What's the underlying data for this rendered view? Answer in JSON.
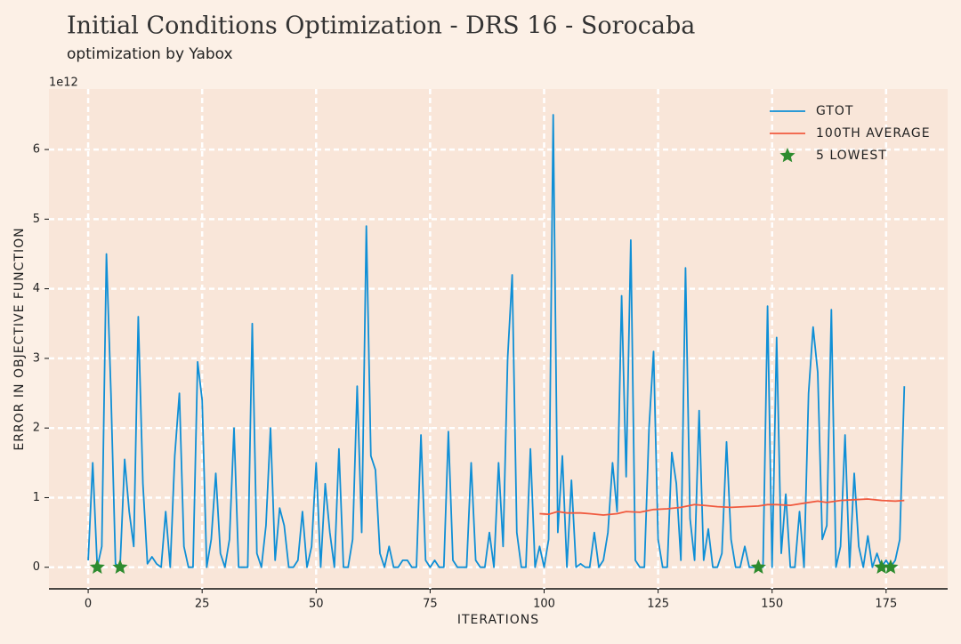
{
  "chart_data": {
    "type": "line",
    "title": "Initial Conditions Optimization - DRS 16 - Sorocaba",
    "subtitle": "optimization by Yabox",
    "x_label": "ITERATIONS",
    "y_label": "ERROR IN OBJECTIVE FUNCTION",
    "y_offset_label": "1e12",
    "xlim": [
      -8.6,
      188.5
    ],
    "ylim": [
      -0.31,
      6.87
    ],
    "xticks": [
      0,
      25,
      50,
      75,
      100,
      125,
      150,
      175
    ],
    "yticks": [
      0,
      1,
      2,
      3,
      4,
      5,
      6
    ],
    "grid": true,
    "legend": "upper right",
    "series": [
      {
        "name": "GTOT",
        "color": "#0f8fd6",
        "style": "line",
        "x": [
          0,
          1,
          2,
          3,
          4,
          5,
          6,
          7,
          8,
          9,
          10,
          11,
          12,
          13,
          14,
          15,
          16,
          17,
          18,
          19,
          20,
          21,
          22,
          23,
          24,
          25,
          26,
          27,
          28,
          29,
          30,
          31,
          32,
          33,
          34,
          35,
          36,
          37,
          38,
          39,
          40,
          41,
          42,
          43,
          44,
          45,
          46,
          47,
          48,
          49,
          50,
          51,
          52,
          53,
          54,
          55,
          56,
          57,
          58,
          59,
          60,
          61,
          62,
          63,
          64,
          65,
          66,
          67,
          68,
          69,
          70,
          71,
          72,
          73,
          74,
          75,
          76,
          77,
          78,
          79,
          80,
          81,
          82,
          83,
          84,
          85,
          86,
          87,
          88,
          89,
          90,
          91,
          92,
          93,
          94,
          95,
          96,
          97,
          98,
          99,
          100,
          101,
          102,
          103,
          104,
          105,
          106,
          107,
          108,
          109,
          110,
          111,
          112,
          113,
          114,
          115,
          116,
          117,
          118,
          119,
          120,
          121,
          122,
          123,
          124,
          125,
          126,
          127,
          128,
          129,
          130,
          131,
          132,
          133,
          134,
          135,
          136,
          137,
          138,
          139,
          140,
          141,
          142,
          143,
          144,
          145,
          146,
          147,
          148,
          149,
          150,
          151,
          152,
          153,
          154,
          155,
          156,
          157,
          158,
          159,
          160,
          161,
          162,
          163,
          164,
          165,
          166,
          167,
          168,
          169,
          170,
          171,
          172,
          173,
          174,
          175,
          176,
          177,
          178,
          179
        ],
        "values": [
          0.1,
          1.5,
          0.0,
          0.3,
          4.5,
          2.5,
          0.05,
          0.0,
          1.55,
          0.8,
          0.3,
          3.6,
          1.2,
          0.05,
          0.15,
          0.05,
          0.0,
          0.8,
          0.0,
          1.6,
          2.5,
          0.3,
          0.0,
          0.0,
          2.95,
          2.4,
          0.0,
          0.4,
          1.35,
          0.2,
          0.0,
          0.4,
          2.0,
          0.0,
          0.0,
          0.0,
          3.5,
          0.2,
          0.0,
          0.6,
          2.0,
          0.1,
          0.85,
          0.6,
          0.0,
          0.0,
          0.1,
          0.8,
          0.0,
          0.3,
          1.5,
          0.0,
          1.2,
          0.5,
          0.0,
          1.7,
          0.0,
          0.0,
          0.4,
          2.6,
          0.5,
          4.9,
          1.6,
          1.4,
          0.2,
          0.0,
          0.3,
          0.0,
          0.0,
          0.1,
          0.1,
          0.0,
          0.0,
          1.9,
          0.1,
          0.0,
          0.1,
          0.0,
          0.0,
          1.95,
          0.1,
          0.0,
          0.0,
          0.0,
          1.5,
          0.1,
          0.0,
          0.0,
          0.5,
          0.0,
          1.5,
          0.3,
          3.0,
          4.2,
          0.5,
          0.0,
          0.0,
          1.7,
          0.0,
          0.3,
          0.0,
          0.4,
          6.5,
          0.5,
          1.6,
          0.0,
          1.25,
          0.0,
          0.05,
          0.0,
          0.0,
          0.5,
          0.0,
          0.1,
          0.5,
          1.5,
          0.8,
          3.9,
          1.3,
          4.7,
          0.1,
          0.0,
          0.0,
          2.0,
          3.1,
          0.4,
          0.0,
          0.0,
          1.65,
          1.2,
          0.1,
          4.3,
          0.7,
          0.1,
          2.25,
          0.1,
          0.55,
          0.0,
          0.0,
          0.2,
          1.8,
          0.4,
          0.0,
          0.0,
          0.3,
          0.0,
          0.0,
          0.0,
          0.0,
          3.75,
          0.0,
          3.3,
          0.2,
          1.05,
          0.0,
          0.0,
          0.8,
          0.0,
          2.5,
          3.45,
          2.8,
          0.4,
          0.6,
          3.7,
          0.0,
          0.3,
          1.9,
          0.0,
          1.35,
          0.3,
          0.0,
          0.45,
          0.0,
          0.2,
          0.0,
          0.1,
          0.0,
          0.1,
          0.4,
          2.6
        ]
      },
      {
        "name": "100TH AVERAGE",
        "color": "#f05a3f",
        "style": "line",
        "x": [
          99,
          101,
          103,
          105,
          108,
          110,
          113,
          116,
          118,
          121,
          124,
          127,
          130,
          133,
          135,
          138,
          141,
          144,
          147,
          149,
          151,
          154,
          157,
          160,
          162,
          165,
          168,
          171,
          174,
          177,
          179
        ],
        "values": [
          0.77,
          0.76,
          0.8,
          0.78,
          0.78,
          0.77,
          0.75,
          0.77,
          0.8,
          0.79,
          0.83,
          0.84,
          0.86,
          0.9,
          0.89,
          0.87,
          0.86,
          0.87,
          0.88,
          0.9,
          0.9,
          0.89,
          0.92,
          0.95,
          0.93,
          0.96,
          0.97,
          0.98,
          0.96,
          0.95,
          0.96
        ]
      },
      {
        "name": "5 LOWEST",
        "color": "#2e8b2e",
        "style": "star",
        "x": [
          2,
          7,
          147,
          174,
          176
        ],
        "values": [
          0.0,
          0.0,
          0.0,
          0.0,
          0.0
        ]
      }
    ]
  }
}
